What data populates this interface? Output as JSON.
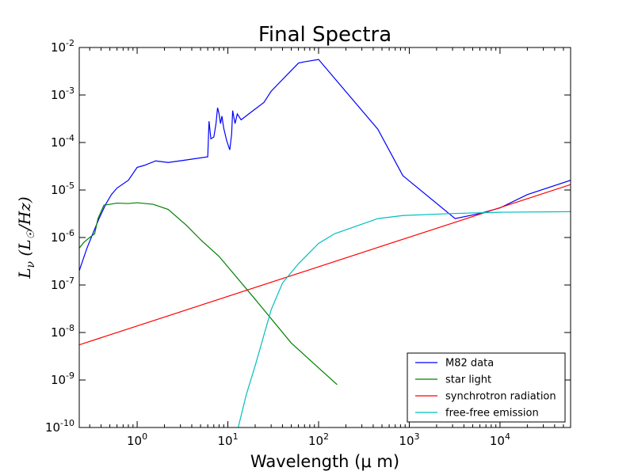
{
  "chart_data": {
    "type": "line",
    "title": "Final Spectra",
    "xlabel": "Wavelength (μ m)",
    "ylabel": "Lν (L☉/Hz)",
    "ylabel_parts": {
      "main": "L",
      "sub": "ν",
      "rest": " (L",
      "sun": "☉",
      "unit": "/Hz)"
    },
    "x_scale": "log",
    "y_scale": "log",
    "xlim": [
      0.23,
      60000
    ],
    "ylim": [
      1e-10,
      0.01
    ],
    "x_ticks": [
      {
        "value": 1,
        "base": "10",
        "exp": "0"
      },
      {
        "value": 10,
        "base": "10",
        "exp": "1"
      },
      {
        "value": 100,
        "base": "10",
        "exp": "2"
      },
      {
        "value": 1000,
        "base": "10",
        "exp": "3"
      },
      {
        "value": 10000,
        "base": "10",
        "exp": "4"
      }
    ],
    "y_ticks": [
      {
        "value": 1e-10,
        "base": "10",
        "exp": "-10"
      },
      {
        "value": 1e-09,
        "base": "10",
        "exp": "-9"
      },
      {
        "value": 1e-08,
        "base": "10",
        "exp": "-8"
      },
      {
        "value": 1e-07,
        "base": "10",
        "exp": "-7"
      },
      {
        "value": 1e-06,
        "base": "10",
        "exp": "-6"
      },
      {
        "value": 1e-05,
        "base": "10",
        "exp": "-5"
      },
      {
        "value": 0.0001,
        "base": "10",
        "exp": "-4"
      },
      {
        "value": 0.001,
        "base": "10",
        "exp": "-3"
      },
      {
        "value": 0.01,
        "base": "10",
        "exp": "-2"
      }
    ],
    "grid": false,
    "legend_position": "lower-right",
    "series": [
      {
        "name": "M82 data",
        "color": "#0000ff",
        "points": [
          [
            0.23,
            2e-07
          ],
          [
            0.28,
            6e-07
          ],
          [
            0.33,
            1.3e-06
          ],
          [
            0.38,
            2.5e-06
          ],
          [
            0.45,
            5e-06
          ],
          [
            0.52,
            8e-06
          ],
          [
            0.6,
            1.1e-05
          ],
          [
            0.8,
            1.6e-05
          ],
          [
            1.0,
            3e-05
          ],
          [
            1.2,
            3.3e-05
          ],
          [
            1.6,
            4.1e-05
          ],
          [
            2.2,
            3.8e-05
          ],
          [
            3.5,
            4.3e-05
          ],
          [
            6.0,
            5e-05
          ],
          [
            6.2,
            0.00028
          ],
          [
            6.5,
            0.00012
          ],
          [
            7.0,
            0.00013
          ],
          [
            7.4,
            0.00025
          ],
          [
            7.7,
            0.00054
          ],
          [
            8.0,
            0.0004
          ],
          [
            8.3,
            0.00025
          ],
          [
            8.6,
            0.00036
          ],
          [
            9.0,
            0.0002
          ],
          [
            9.7,
            0.00011
          ],
          [
            10.5,
            7e-05
          ],
          [
            11.0,
            0.00015
          ],
          [
            11.3,
            0.00047
          ],
          [
            12.0,
            0.00025
          ],
          [
            12.7,
            0.0004
          ],
          [
            14.0,
            0.0003
          ],
          [
            17.0,
            0.0004
          ],
          [
            25.0,
            0.0007
          ],
          [
            30.0,
            0.0012
          ],
          [
            60.0,
            0.0047
          ],
          [
            70.0,
            0.005
          ],
          [
            100.0,
            0.0056
          ],
          [
            450.0,
            0.00019
          ],
          [
            850.0,
            2e-05
          ],
          [
            3200.0,
            2.5e-06
          ],
          [
            6000.0,
            3.2e-06
          ],
          [
            10000.0,
            4.2e-06
          ],
          [
            20000.0,
            8e-06
          ],
          [
            60000.0,
            1.6e-05
          ]
        ]
      },
      {
        "name": "star light",
        "color": "#008000",
        "points": [
          [
            0.23,
            6e-07
          ],
          [
            0.26,
            8e-07
          ],
          [
            0.3,
            1e-06
          ],
          [
            0.34,
            1.2e-06
          ],
          [
            0.37,
            2.5e-06
          ],
          [
            0.4,
            3.5e-06
          ],
          [
            0.43,
            4.8e-06
          ],
          [
            0.5,
            5e-06
          ],
          [
            0.6,
            5.3e-06
          ],
          [
            0.8,
            5.2e-06
          ],
          [
            1.0,
            5.4e-06
          ],
          [
            1.5,
            5e-06
          ],
          [
            2.2,
            3.9e-06
          ],
          [
            3.5,
            1.8e-06
          ],
          [
            5.0,
            9e-07
          ],
          [
            8.0,
            4e-07
          ],
          [
            20.0,
            5e-08
          ],
          [
            50.0,
            6e-09
          ],
          [
            100.0,
            1.8e-09
          ],
          [
            160.0,
            8e-10
          ]
        ]
      },
      {
        "name": "synchrotron radiation",
        "color": "#ff0000",
        "points": [
          [
            0.23,
            5.5e-09
          ],
          [
            60000.0,
            1.3e-05
          ]
        ]
      },
      {
        "name": "free-free emission",
        "color": "#00bfbf",
        "points": [
          [
            13.0,
            1e-10
          ],
          [
            16.0,
            5e-10
          ],
          [
            20.0,
            2e-09
          ],
          [
            30.0,
            3e-08
          ],
          [
            40.0,
            1.1e-07
          ],
          [
            60.0,
            2.8e-07
          ],
          [
            100.0,
            7.5e-07
          ],
          [
            150.0,
            1.2e-06
          ],
          [
            450.0,
            2.5e-06
          ],
          [
            850.0,
            2.9e-06
          ],
          [
            3000.0,
            3.2e-06
          ],
          [
            10000.0,
            3.4e-06
          ],
          [
            60000.0,
            3.5e-06
          ]
        ]
      }
    ]
  }
}
